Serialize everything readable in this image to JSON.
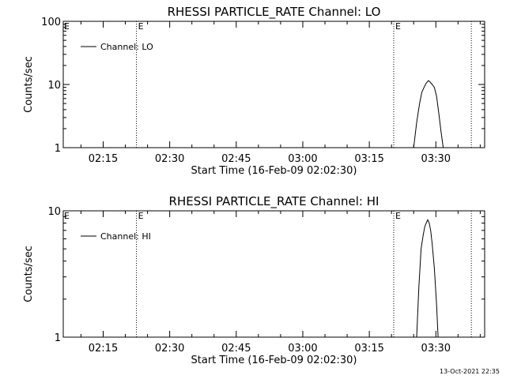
{
  "footer": {
    "timestamp": "13-Oct-2021 22:35"
  },
  "chart_data": [
    {
      "type": "line",
      "title": "RHESSI PARTICLE_RATE Channel: LO",
      "xlabel": "Start Time (16-Feb-09 02:02:30)",
      "ylabel": "Counts/sec",
      "yscale": "log",
      "xlim": [
        "02:06:00",
        "03:41:00"
      ],
      "ylim": [
        1,
        100
      ],
      "x_ticks": [
        "02:15",
        "02:30",
        "02:45",
        "03:00",
        "03:15",
        "03:30"
      ],
      "y_ticks": [
        "1",
        "10",
        "100"
      ],
      "legend": {
        "entries": [
          "Channel: LO"
        ],
        "position": "top-left"
      },
      "grid": false,
      "vlines": [
        {
          "x": "02:22:30",
          "style": "dotted",
          "label": "E"
        },
        {
          "x": "03:20:30",
          "style": "dotted",
          "label": "E"
        },
        {
          "x": "03:38:00",
          "style": "dotted",
          "label": ""
        }
      ],
      "series": [
        {
          "name": "Channel: LO",
          "x": [
            "03:25:00",
            "03:25:40",
            "03:26:20",
            "03:26:50",
            "03:27:20",
            "03:27:50",
            "03:28:20",
            "03:28:40",
            "03:29:10",
            "03:29:40",
            "03:30:10",
            "03:30:40",
            "03:31:10",
            "03:31:40"
          ],
          "y": [
            1.0,
            2.5,
            5.0,
            7.5,
            9.0,
            10.5,
            11.5,
            11.0,
            10.0,
            9.0,
            6.5,
            3.5,
            1.8,
            1.0
          ]
        }
      ]
    },
    {
      "type": "line",
      "title": "RHESSI PARTICLE_RATE Channel: HI",
      "xlabel": "Start Time (16-Feb-09 02:02:30)",
      "ylabel": "Counts/sec",
      "yscale": "log",
      "xlim": [
        "02:06:00",
        "03:41:00"
      ],
      "ylim": [
        1,
        10
      ],
      "x_ticks": [
        "02:15",
        "02:30",
        "02:45",
        "03:00",
        "03:15",
        "03:30"
      ],
      "y_ticks": [
        "1",
        "10"
      ],
      "legend": {
        "entries": [
          "Channel: HI"
        ],
        "position": "top-left"
      },
      "grid": false,
      "vlines": [
        {
          "x": "02:22:30",
          "style": "dotted",
          "label": "E"
        },
        {
          "x": "03:20:30",
          "style": "dotted",
          "label": "E"
        },
        {
          "x": "03:38:00",
          "style": "dotted",
          "label": ""
        }
      ],
      "series": [
        {
          "name": "Channel: HI",
          "x": [
            "03:25:40",
            "03:26:10",
            "03:26:40",
            "03:27:10",
            "03:27:30",
            "03:27:50",
            "03:28:10",
            "03:28:30",
            "03:28:50",
            "03:29:10",
            "03:29:40",
            "03:30:10",
            "03:30:30"
          ],
          "y": [
            1.0,
            2.5,
            5.0,
            6.5,
            7.5,
            8.0,
            8.5,
            8.0,
            7.0,
            5.5,
            3.5,
            1.8,
            1.0
          ]
        }
      ]
    }
  ]
}
